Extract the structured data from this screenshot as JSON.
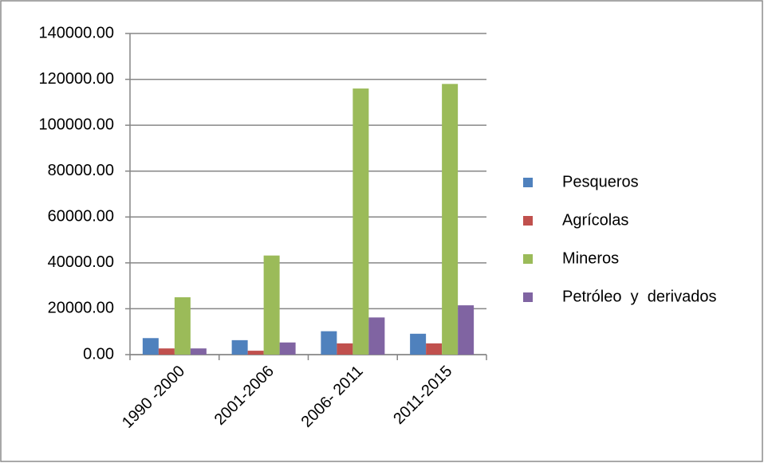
{
  "chart_data": {
    "type": "bar",
    "categories": [
      "1990 -2000",
      "2001-2006",
      "2006- 2011",
      "2011-2015"
    ],
    "series": [
      {
        "name": "Pesqueros",
        "color": "#4f81bd",
        "values": [
          7200,
          6300,
          10200,
          9100
        ]
      },
      {
        "name": "Agrícolas",
        "color": "#c0504d",
        "values": [
          2700,
          1700,
          4900,
          4900
        ]
      },
      {
        "name": "Mineros",
        "color": "#9bbb59",
        "values": [
          25000,
          43200,
          116000,
          118000
        ]
      },
      {
        "name": "Petróleo  y  derivados",
        "color": "#8064a2",
        "values": [
          2700,
          5300,
          16200,
          21500
        ]
      }
    ],
    "ylim": [
      0,
      140000
    ],
    "yticks": [
      {
        "value": 0,
        "label": "0.00"
      },
      {
        "value": 20000,
        "label": "20000.00"
      },
      {
        "value": 40000,
        "label": "40000.00"
      },
      {
        "value": 60000,
        "label": "60000.00"
      },
      {
        "value": 80000,
        "label": "80000.00"
      },
      {
        "value": 100000,
        "label": "100000.00"
      },
      {
        "value": 120000,
        "label": "120000.00"
      },
      {
        "value": 140000,
        "label": "140000.00"
      }
    ],
    "grid": true,
    "legend": "right"
  }
}
